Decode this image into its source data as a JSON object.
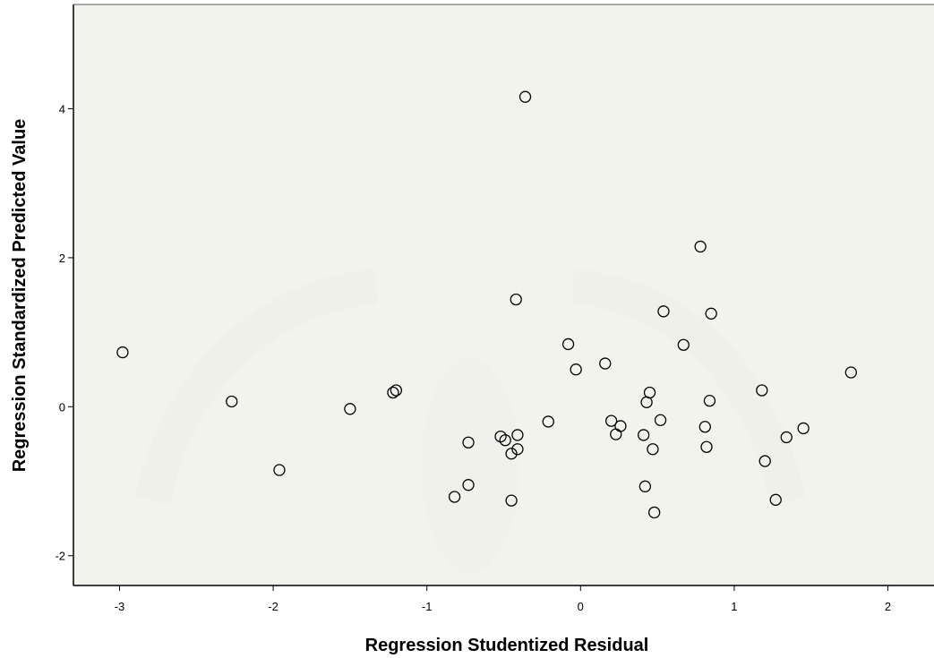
{
  "chart_data": {
    "type": "scatter",
    "xlabel": "Regression Studentized Residual",
    "ylabel": "Regression Standardized Predicted Value",
    "xlim": [
      -3.3,
      2.3
    ],
    "ylim": [
      -2.4,
      5.4
    ],
    "xticks": [
      -3,
      -2,
      -1,
      0,
      1,
      2
    ],
    "yticks": [
      -2,
      0,
      2,
      4
    ],
    "grid": false,
    "marker": "open-circle",
    "background_color": "#f0f0ea",
    "marker_color": "#000000",
    "points": [
      {
        "x": -2.98,
        "y": 0.73
      },
      {
        "x": -2.27,
        "y": 0.07
      },
      {
        "x": -1.96,
        "y": -0.85
      },
      {
        "x": -1.5,
        "y": -0.03
      },
      {
        "x": -1.22,
        "y": 0.19
      },
      {
        "x": -1.2,
        "y": 0.22
      },
      {
        "x": -0.82,
        "y": -1.21
      },
      {
        "x": -0.73,
        "y": -1.05
      },
      {
        "x": -0.73,
        "y": -0.48
      },
      {
        "x": -0.52,
        "y": -0.4
      },
      {
        "x": -0.49,
        "y": -0.45
      },
      {
        "x": -0.45,
        "y": -1.26
      },
      {
        "x": -0.45,
        "y": -0.63
      },
      {
        "x": -0.41,
        "y": -0.57
      },
      {
        "x": -0.41,
        "y": -0.38
      },
      {
        "x": -0.42,
        "y": 1.44
      },
      {
        "x": -0.36,
        "y": 4.16
      },
      {
        "x": -0.21,
        "y": -0.2
      },
      {
        "x": -0.08,
        "y": 0.84
      },
      {
        "x": -0.03,
        "y": 0.5
      },
      {
        "x": 0.16,
        "y": 0.58
      },
      {
        "x": 0.2,
        "y": -0.19
      },
      {
        "x": 0.23,
        "y": -0.37
      },
      {
        "x": 0.26,
        "y": -0.26
      },
      {
        "x": 0.41,
        "y": -0.38
      },
      {
        "x": 0.42,
        "y": -1.07
      },
      {
        "x": 0.43,
        "y": 0.06
      },
      {
        "x": 0.45,
        "y": 0.19
      },
      {
        "x": 0.47,
        "y": -0.57
      },
      {
        "x": 0.48,
        "y": -1.42
      },
      {
        "x": 0.52,
        "y": -0.18
      },
      {
        "x": 0.54,
        "y": 1.28
      },
      {
        "x": 0.67,
        "y": 0.83
      },
      {
        "x": 0.78,
        "y": 2.15
      },
      {
        "x": 0.81,
        "y": -0.27
      },
      {
        "x": 0.82,
        "y": -0.54
      },
      {
        "x": 0.84,
        "y": 0.08
      },
      {
        "x": 0.85,
        "y": 1.25
      },
      {
        "x": 1.18,
        "y": 0.22
      },
      {
        "x": 1.2,
        "y": -0.73
      },
      {
        "x": 1.27,
        "y": -1.25
      },
      {
        "x": 1.34,
        "y": -0.41
      },
      {
        "x": 1.45,
        "y": -0.29
      },
      {
        "x": 1.76,
        "y": 0.46
      }
    ]
  }
}
